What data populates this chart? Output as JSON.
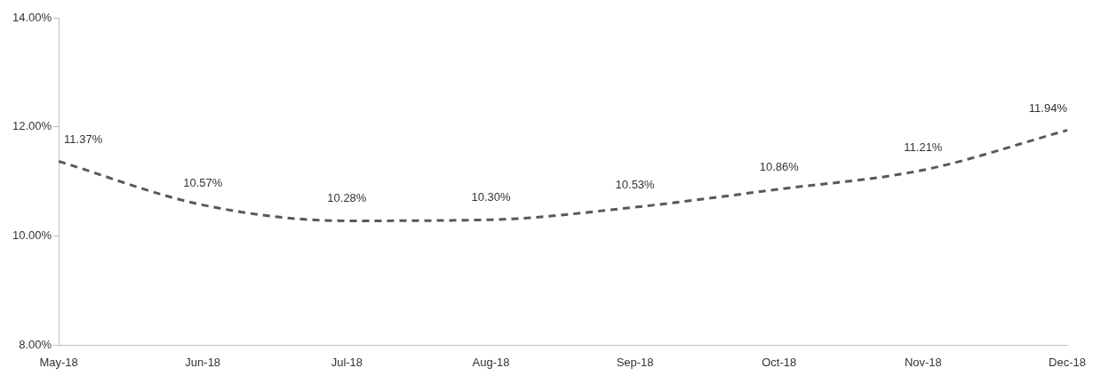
{
  "chart_data": {
    "type": "line",
    "categories": [
      "May-18",
      "Jun-18",
      "Jul-18",
      "Aug-18",
      "Sep-18",
      "Oct-18",
      "Nov-18",
      "Dec-18"
    ],
    "series": [
      {
        "color": "#595959",
        "values": [
          11.37,
          10.57,
          10.28,
          10.3,
          10.53,
          10.86,
          11.21,
          11.94
        ]
      }
    ],
    "ylim": [
      8,
      14
    ],
    "yticks": [
      {
        "value": 8,
        "label": "8.00%"
      },
      {
        "value": 10,
        "label": "10.00%"
      },
      {
        "value": 12,
        "label": "12.00%"
      },
      {
        "value": 14,
        "label": "14.00%"
      }
    ],
    "value_labels": [
      "11.37%",
      "10.57%",
      "10.28%",
      "10.30%",
      "10.53%",
      "10.86%",
      "11.21%",
      "11.94%"
    ],
    "grid": false,
    "legend": false,
    "marker": "none",
    "line_style": "dashed"
  }
}
